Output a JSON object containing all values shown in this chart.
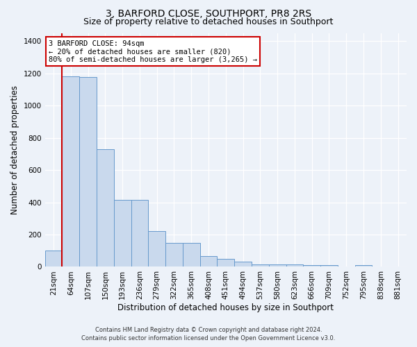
{
  "title": "3, BARFORD CLOSE, SOUTHPORT, PR8 2RS",
  "subtitle": "Size of property relative to detached houses in Southport",
  "xlabel": "Distribution of detached houses by size in Southport",
  "ylabel": "Number of detached properties",
  "categories": [
    "21sqm",
    "64sqm",
    "107sqm",
    "150sqm",
    "193sqm",
    "236sqm",
    "279sqm",
    "322sqm",
    "365sqm",
    "408sqm",
    "451sqm",
    "494sqm",
    "537sqm",
    "580sqm",
    "623sqm",
    "666sqm",
    "709sqm",
    "752sqm",
    "795sqm",
    "838sqm",
    "881sqm"
  ],
  "values": [
    100,
    1180,
    1175,
    730,
    415,
    415,
    220,
    150,
    150,
    65,
    50,
    30,
    15,
    15,
    15,
    10,
    10,
    0,
    10,
    0,
    0
  ],
  "bar_color": "#c9d9ed",
  "bar_edge_color": "#6699cc",
  "highlight_edge_color": "#cc0000",
  "red_line_index": 1,
  "annotation_text": "3 BARFORD CLOSE: 94sqm\n← 20% of detached houses are smaller (820)\n80% of semi-detached houses are larger (3,265) →",
  "annotation_box_color": "#ffffff",
  "annotation_box_edge_color": "#cc0000",
  "ylim": [
    0,
    1450
  ],
  "background_color": "#edf2f9",
  "plot_bg_color": "#edf2f9",
  "footer_line1": "Contains HM Land Registry data © Crown copyright and database right 2024.",
  "footer_line2": "Contains public sector information licensed under the Open Government Licence v3.0.",
  "title_fontsize": 10,
  "subtitle_fontsize": 9,
  "tick_fontsize": 7.5,
  "ylabel_fontsize": 8.5,
  "xlabel_fontsize": 8.5,
  "annotation_fontsize": 7.5,
  "footer_fontsize": 6.0
}
